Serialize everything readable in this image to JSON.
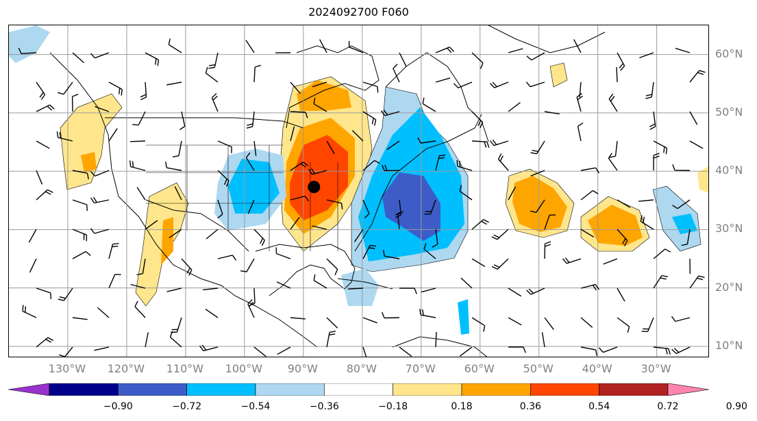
{
  "title": "2024092700 F060",
  "map": {
    "projection_hint": "plate-carree",
    "lon_range": [
      -140,
      -21
    ],
    "lat_range": [
      8,
      65
    ],
    "lat_ticks": [
      {
        "lat": 60,
        "label": "60°N"
      },
      {
        "lat": 50,
        "label": "50°N"
      },
      {
        "lat": 40,
        "label": "40°N"
      },
      {
        "lat": 30,
        "label": "30°N"
      },
      {
        "lat": 20,
        "label": "20°N"
      },
      {
        "lat": 10,
        "label": "10°N"
      }
    ],
    "lon_ticks": [
      {
        "lon": -130,
        "label": "130°W"
      },
      {
        "lon": -120,
        "label": "120°W"
      },
      {
        "lon": -110,
        "label": "110°W"
      },
      {
        "lon": -100,
        "label": "100°W"
      },
      {
        "lon": -90,
        "label": "90°W"
      },
      {
        "lon": -80,
        "label": "80°W"
      },
      {
        "lon": -70,
        "label": "70°W"
      },
      {
        "lon": -60,
        "label": "60°W"
      },
      {
        "lon": -50,
        "label": "50°W"
      },
      {
        "lon": -40,
        "label": "40°W"
      },
      {
        "lon": -30,
        "label": "30°W"
      }
    ],
    "grid": true,
    "marker": {
      "lon": -88.2,
      "lat": 37.3,
      "color": "#000000"
    }
  },
  "colorbar": {
    "levels": [
      "−0.90",
      "−0.72",
      "−0.54",
      "−0.36",
      "−0.18",
      "0.18",
      "0.36",
      "0.54",
      "0.72",
      "0.90"
    ],
    "colors": [
      "#9932cc",
      "#00008b",
      "#3d5cc8",
      "#00bfff",
      "#add8f0",
      "#ffffff",
      "#ffe68c",
      "#ffa500",
      "#ff4500",
      "#b22222",
      "#ff85ad"
    ],
    "extend": "both"
  }
}
